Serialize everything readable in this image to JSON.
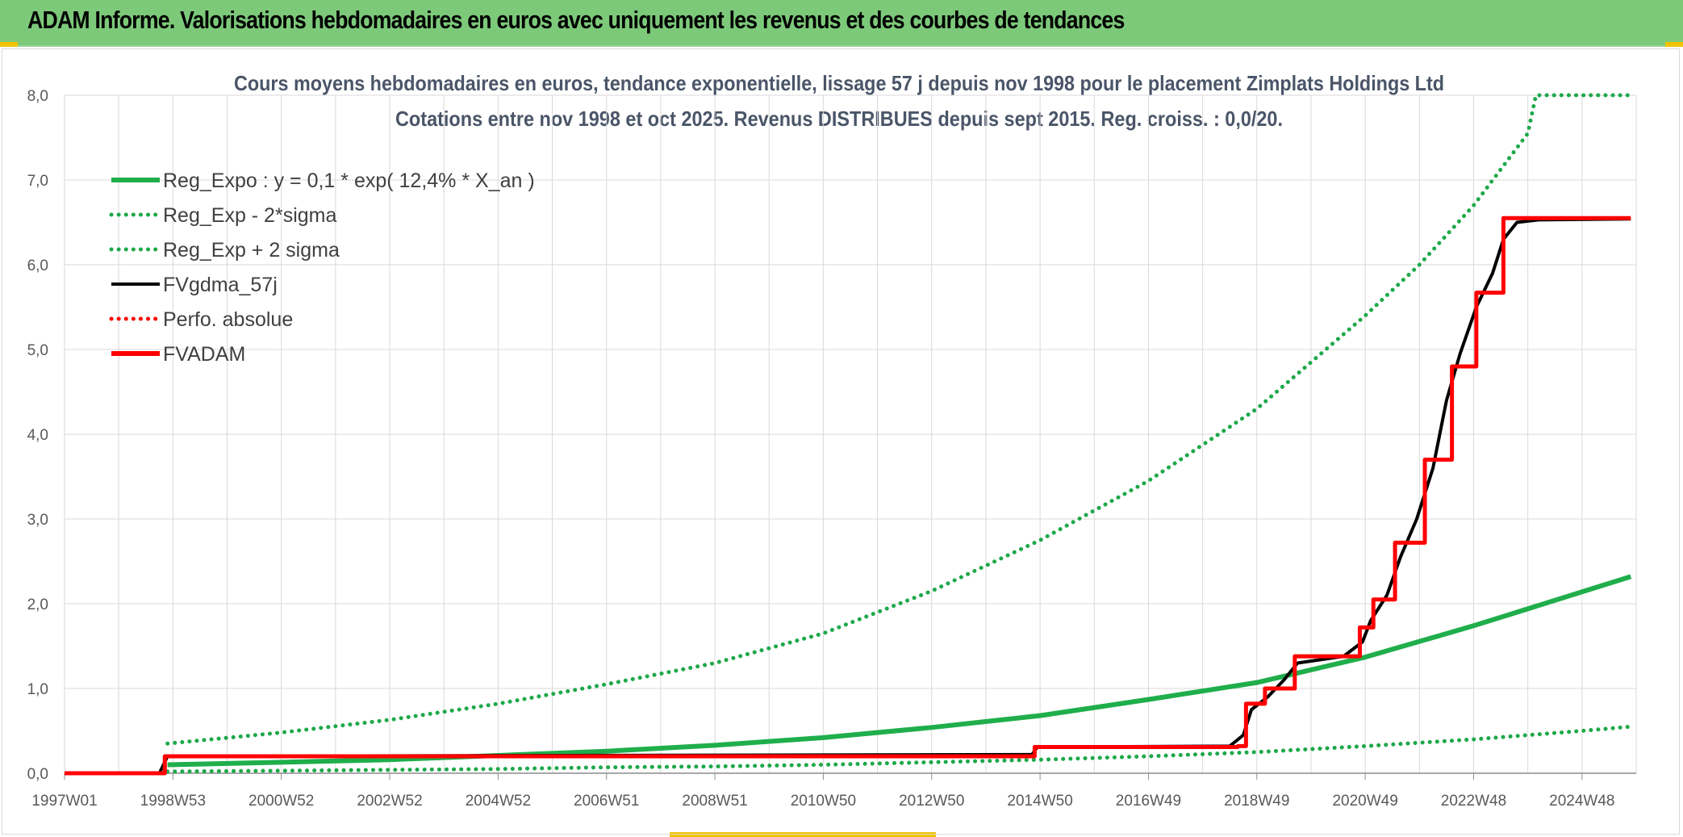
{
  "header": {
    "title": "ADAM Informe. Valorisations hebdomadaires en euros avec uniquement les revenus et des courbes de tendances"
  },
  "colors": {
    "header_bg": "#7dc97a",
    "green": "#1fae4b",
    "green_dotted": "#1ea84a",
    "black": "#000000",
    "red": "#ff0000",
    "grid": "#d9d9d9"
  },
  "chart_data": {
    "type": "line",
    "title_line1": "Cours moyens hebdomadaires en euros, tendance exponentielle, lissage 57 j depuis nov 1998 pour le placement Zimplats Holdings Ltd",
    "title_line2": "Cotations entre nov 1998 et oct 2025. Revenus DISTRIBUES depuis sept 2015. Reg. croiss. : 0,0/20.",
    "ylim": [
      0,
      8
    ],
    "xlim": [
      1997.0,
      2026.0
    ],
    "y_ticks": [
      "0,0",
      "1,0",
      "2,0",
      "3,0",
      "4,0",
      "5,0",
      "6,0",
      "7,0",
      "8,0"
    ],
    "x_ticks": [
      {
        "label": "1997W01",
        "x": 1997.0
      },
      {
        "label": "1998W53",
        "x": 1999.0
      },
      {
        "label": "2000W52",
        "x": 2001.0
      },
      {
        "label": "2002W52",
        "x": 2003.0
      },
      {
        "label": "2004W52",
        "x": 2005.0
      },
      {
        "label": "2006W51",
        "x": 2007.0
      },
      {
        "label": "2008W51",
        "x": 2009.0
      },
      {
        "label": "2010W50",
        "x": 2011.0
      },
      {
        "label": "2012W50",
        "x": 2013.0
      },
      {
        "label": "2014W50",
        "x": 2015.0
      },
      {
        "label": "2016W49",
        "x": 2017.0
      },
      {
        "label": "2018W49",
        "x": 2019.0
      },
      {
        "label": "2020W49",
        "x": 2021.0
      },
      {
        "label": "2022W48",
        "x": 2023.0
      },
      {
        "label": "2024W48",
        "x": 2025.0
      }
    ],
    "grid": true,
    "legend_position": "top-left",
    "series": [
      {
        "name": "Reg_Expo : y = 0,1 * exp( 12,4% *  X_an )",
        "style": "solid",
        "color": "#1fae4b",
        "points": [
          [
            1998.9,
            0.1
          ],
          [
            2001.0,
            0.13
          ],
          [
            2003.0,
            0.16
          ],
          [
            2005.0,
            0.21
          ],
          [
            2007.0,
            0.26
          ],
          [
            2009.0,
            0.33
          ],
          [
            2011.0,
            0.42
          ],
          [
            2013.0,
            0.54
          ],
          [
            2015.0,
            0.68
          ],
          [
            2017.0,
            0.87
          ],
          [
            2019.0,
            1.07
          ],
          [
            2021.0,
            1.37
          ],
          [
            2023.0,
            1.74
          ],
          [
            2025.0,
            2.14
          ],
          [
            2025.9,
            2.32
          ]
        ]
      },
      {
        "name": "Reg_Exp - 2*sigma",
        "style": "dotted",
        "color": "#1ea84a",
        "points": [
          [
            1998.9,
            0.02
          ],
          [
            2001.0,
            0.03
          ],
          [
            2003.0,
            0.04
          ],
          [
            2005.0,
            0.05
          ],
          [
            2007.0,
            0.07
          ],
          [
            2009.0,
            0.08
          ],
          [
            2011.0,
            0.1
          ],
          [
            2013.0,
            0.13
          ],
          [
            2015.0,
            0.16
          ],
          [
            2017.0,
            0.2
          ],
          [
            2019.0,
            0.25
          ],
          [
            2021.0,
            0.32
          ],
          [
            2023.0,
            0.4
          ],
          [
            2025.0,
            0.5
          ],
          [
            2025.9,
            0.55
          ]
        ]
      },
      {
        "name": "Reg_Exp + 2 sigma",
        "style": "dotted",
        "color": "#1ea84a",
        "points": [
          [
            1998.9,
            0.35
          ],
          [
            2001.0,
            0.48
          ],
          [
            2003.0,
            0.63
          ],
          [
            2005.0,
            0.82
          ],
          [
            2007.0,
            1.05
          ],
          [
            2009.0,
            1.3
          ],
          [
            2011.0,
            1.65
          ],
          [
            2013.0,
            2.15
          ],
          [
            2015.0,
            2.75
          ],
          [
            2017.0,
            3.45
          ],
          [
            2019.0,
            4.3
          ],
          [
            2021.0,
            5.4
          ],
          [
            2022.0,
            6.0
          ],
          [
            2023.0,
            6.7
          ],
          [
            2024.0,
            7.55
          ],
          [
            2024.15,
            8.0
          ],
          [
            2025.9,
            8.0
          ]
        ]
      },
      {
        "name": "FVgdma_57j",
        "style": "solid",
        "color": "#000000",
        "points": [
          [
            1997.0,
            0.0
          ],
          [
            1998.75,
            0.0
          ],
          [
            1998.9,
            0.2
          ],
          [
            2014.85,
            0.22
          ],
          [
            2014.95,
            0.31
          ],
          [
            2018.5,
            0.32
          ],
          [
            2018.75,
            0.45
          ],
          [
            2018.9,
            0.75
          ],
          [
            2019.2,
            0.9
          ],
          [
            2019.5,
            1.1
          ],
          [
            2019.75,
            1.3
          ],
          [
            2020.6,
            1.38
          ],
          [
            2020.95,
            1.55
          ],
          [
            2021.1,
            1.8
          ],
          [
            2021.4,
            2.1
          ],
          [
            2021.65,
            2.55
          ],
          [
            2021.95,
            3.0
          ],
          [
            2022.25,
            3.6
          ],
          [
            2022.5,
            4.4
          ],
          [
            2022.75,
            4.95
          ],
          [
            2023.05,
            5.5
          ],
          [
            2023.35,
            5.9
          ],
          [
            2023.55,
            6.3
          ],
          [
            2023.8,
            6.5
          ],
          [
            2024.2,
            6.53
          ],
          [
            2025.9,
            6.54
          ]
        ]
      },
      {
        "name": "FVADAM",
        "style": "solid",
        "color": "#ff0000",
        "steps": [
          [
            1997.0,
            0.0
          ],
          [
            1998.85,
            0.2
          ],
          [
            2014.9,
            0.31
          ],
          [
            2018.65,
            0.32
          ],
          [
            2018.8,
            0.82
          ],
          [
            2019.15,
            1.0
          ],
          [
            2019.7,
            1.38
          ],
          [
            2020.9,
            1.72
          ],
          [
            2021.15,
            2.05
          ],
          [
            2021.55,
            2.72
          ],
          [
            2022.1,
            3.7
          ],
          [
            2022.6,
            4.8
          ],
          [
            2023.05,
            5.67
          ],
          [
            2023.55,
            6.55
          ]
        ],
        "end_x": 2025.9
      },
      {
        "name": "Perfo. absolue",
        "style": "dotted",
        "color": "#ff0000",
        "points": []
      }
    ]
  }
}
